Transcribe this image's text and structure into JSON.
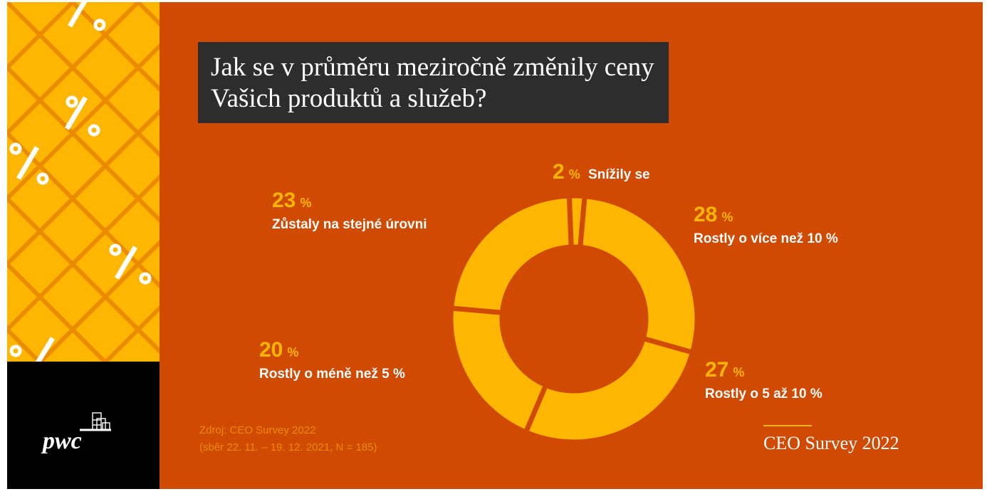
{
  "title": {
    "line1": "Jak se v průměru meziročně změnily ceny",
    "line2": "Vašich produktů a služeb?"
  },
  "chart_data": {
    "type": "pie",
    "variant": "donut",
    "categories": [
      "Rostly o více než 10 %",
      "Rostly o 5 až 10 %",
      "Rostly o méně než 5 %",
      "Zůstaly na stejné úrovni",
      "Snížily se"
    ],
    "values": [
      28,
      27,
      20,
      23,
      2
    ],
    "unit": "%",
    "labels": [
      {
        "value": "28",
        "unit": "%",
        "text": "Rostly o více než 10 %"
      },
      {
        "value": "27",
        "unit": "%",
        "text": "Rostly o 5 až 10 %"
      },
      {
        "value": "20",
        "unit": "%",
        "text": "Rostly o méně než 5 %"
      },
      {
        "value": "23",
        "unit": "%",
        "text": "Zůstaly na stejné úrovni"
      },
      {
        "value": "2",
        "unit": "%",
        "text": "Snížily se"
      }
    ]
  },
  "source": {
    "line1": "Zdroj: CEO Survey 2022",
    "line2": "(sběr 22. 11. – 19. 12. 2021, N = 185)"
  },
  "brand": {
    "survey_label": "CEO Survey 2022",
    "logo_text": "pwc"
  },
  "colors": {
    "background": "#d04a02",
    "accent": "#ffb600",
    "title_box": "#2d2d2d",
    "pattern": "#ffb600"
  }
}
